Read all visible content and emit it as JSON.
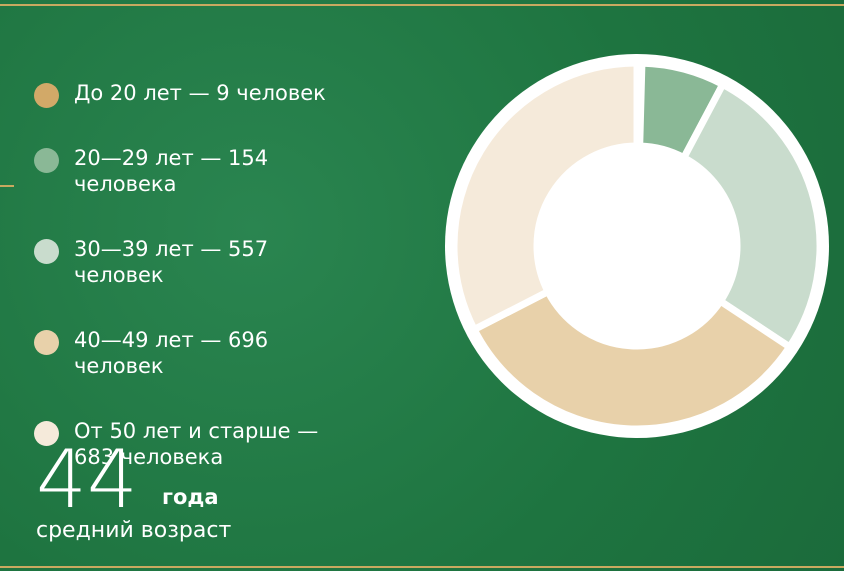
{
  "chart_data": {
    "type": "pie",
    "donut": true,
    "categories": [
      "До 20 лет — 9 человек",
      "20—29 лет — 154 человека",
      "30—39 лет — 557 человек",
      "40—49 лет — 696 человек",
      "От 50 лет и старше — 683 человека"
    ],
    "values": [
      9,
      154,
      557,
      696,
      683
    ],
    "colors": [
      "#d2a968",
      "#8ab896",
      "#c9dccd",
      "#e8d1aa",
      "#f5eada"
    ],
    "stat": {
      "value": 44,
      "unit": "года",
      "label": "средний возраст"
    }
  }
}
